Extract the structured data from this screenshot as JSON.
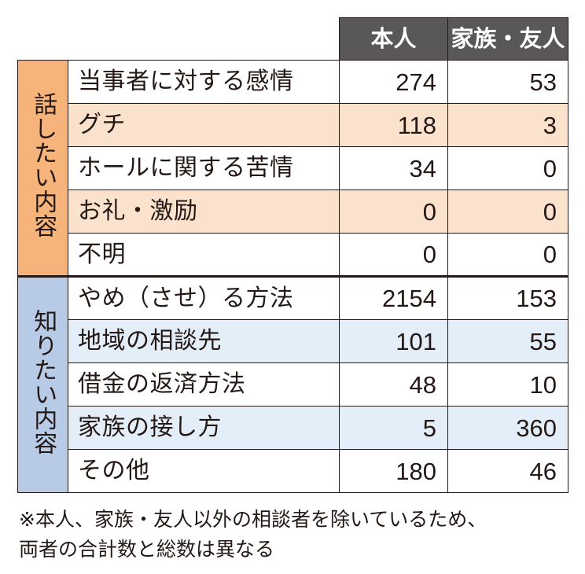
{
  "table": {
    "headers": [
      "本人",
      "家族・友人"
    ],
    "groups": [
      {
        "label": "話したい内容",
        "rows": [
          {
            "label": "当事者に対する感情",
            "values": [
              "274",
              "53"
            ]
          },
          {
            "label": "グチ",
            "values": [
              "118",
              "3"
            ]
          },
          {
            "label": "ホールに関する苦情",
            "values": [
              "34",
              "0"
            ]
          },
          {
            "label": "お礼・激励",
            "values": [
              "0",
              "0"
            ]
          },
          {
            "label": "不明",
            "values": [
              "0",
              "0"
            ]
          }
        ]
      },
      {
        "label": "知りたい内容",
        "rows": [
          {
            "label": "やめ（させ）る方法",
            "values": [
              "2154",
              "153"
            ]
          },
          {
            "label": "地域の相談先",
            "values": [
              "101",
              "55"
            ]
          },
          {
            "label": "借金の返済方法",
            "values": [
              "48",
              "10"
            ]
          },
          {
            "label": "家族の接し方",
            "values": [
              "5",
              "360"
            ]
          },
          {
            "label": "その他",
            "values": [
              "180",
              "46"
            ]
          }
        ]
      }
    ]
  },
  "colors": {
    "header_bg": "#595757",
    "talk_group": "#f6b47b",
    "talk_shade": "#fbe2cc",
    "know_group": "#b7cbe6",
    "know_shade": "#e3eef8"
  },
  "footnote": {
    "line1": "※本人、家族・友人以外の相談者を除いているため、",
    "line2": "両者の合計数と総数は異なる"
  }
}
